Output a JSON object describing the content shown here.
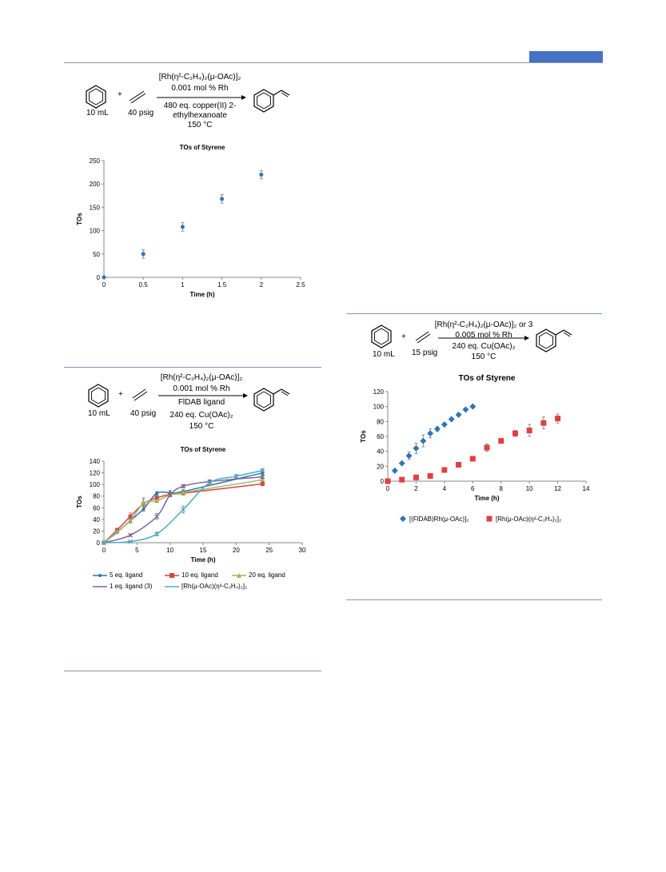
{
  "colors": {
    "rule": "#8496b0",
    "accent": "#4472c4",
    "blue": "#2e75b6",
    "red": "#e04040",
    "green": "#9bbb59",
    "purple": "#8064a2",
    "cyan": "#4bacc6",
    "axis": "#888888",
    "grid": "#d9d9d9"
  },
  "icons": [
    "benzene-icon",
    "ethylene-icon",
    "styrene-icon",
    "reaction-arrow-icon"
  ],
  "scheme1": {
    "plus": "+",
    "benzene_label": "10 mL",
    "ethylene_label": "40 psig",
    "catalyst": "[Rh(η²-C₂H₄)₂(μ-OAc)]₂",
    "loading": "0.001 mol % Rh",
    "oxidant_1": "480 eq. copper(II) 2-",
    "oxidant_2": "ethylhexanoate",
    "temp": "150 °C"
  },
  "scheme2": {
    "plus": "+",
    "benzene_label": "10 mL",
    "ethylene_label": "40 psig",
    "catalyst": "[Rh(η²-C₂H₄)₂(μ-OAc)]₂",
    "loading": "0.001 mol % Rh",
    "ligand": "FlDAB ligand",
    "oxidant": "240 eq. Cu(OAc)₂",
    "temp": "150 °C"
  },
  "scheme3": {
    "plus": "+",
    "benzene_label": "10 mL",
    "ethylene_label": "15 psig",
    "catalyst": "[Rh(η²-C₂H₄)₂(μ-OAc)]₂ or 3",
    "loading": "0.005 mol % Rh",
    "oxidant": "240 eq. Cu(OAc)₂",
    "temp": "150 °C"
  },
  "chart_data": [
    {
      "type": "scatter",
      "title": "TOs of Styrene",
      "xlabel": "Time (h)",
      "ylabel": "TOs",
      "xlim": [
        0,
        2.5
      ],
      "ylim": [
        0,
        250
      ],
      "xticks": [
        "0",
        "0.5",
        "1",
        "1.5",
        "2",
        "2.5"
      ],
      "yticks": [
        "0",
        "50",
        "100",
        "150",
        "200",
        "250"
      ],
      "series": [
        {
          "color": "#2e75b6",
          "x": [
            0,
            0.5,
            1,
            1.5,
            2
          ],
          "y": [
            0,
            50,
            108,
            168,
            220
          ],
          "err": [
            0,
            9,
            9,
            9,
            9
          ]
        }
      ]
    },
    {
      "type": "line",
      "title": "TOs of Styrene",
      "xlabel": "Time (h)",
      "ylabel": "TOs",
      "xlim": [
        0,
        30
      ],
      "ylim": [
        0,
        140
      ],
      "xticks": [
        "0",
        "5",
        "10",
        "15",
        "20",
        "25",
        "30"
      ],
      "yticks": [
        "0",
        "20",
        "40",
        "60",
        "80",
        "100",
        "120",
        "140"
      ],
      "legend_position": "bottom",
      "series": [
        {
          "name": "5 eq. ligand",
          "color": "#2e75b6",
          "x": [
            0,
            2,
            4,
            6,
            8,
            10,
            12,
            24
          ],
          "y": [
            0,
            18,
            38,
            58,
            85,
            86,
            88,
            120
          ],
          "err": [
            0,
            2,
            3,
            4,
            3,
            4,
            3,
            3
          ]
        },
        {
          "name": "10 eq. ligand",
          "color": "#e04040",
          "x": [
            0,
            2,
            4,
            6,
            8,
            10,
            12,
            24
          ],
          "y": [
            0,
            22,
            45,
            67,
            77,
            83,
            85,
            101
          ],
          "err": [
            0,
            2,
            6,
            10,
            4,
            3,
            3,
            3
          ]
        },
        {
          "name": "20 eq. ligand",
          "color": "#9bbb59",
          "x": [
            0,
            2,
            4,
            6,
            8,
            10,
            12,
            24
          ],
          "y": [
            0,
            19,
            38,
            68,
            72,
            82,
            86,
            108
          ],
          "err": [
            0,
            2,
            4,
            6,
            3,
            3,
            3,
            3
          ]
        },
        {
          "name": "1 eq. ligand (3)",
          "color": "#8064a2",
          "x": [
            0,
            4,
            8,
            10,
            12,
            16,
            24
          ],
          "y": [
            0,
            13,
            45,
            82,
            97,
            105,
            113
          ],
          "err": [
            0,
            2,
            5,
            3,
            3,
            3,
            3
          ]
        },
        {
          "name": "[Rh(μ-OAc)(η²-C₂H₄)₂]₂",
          "color": "#4bacc6",
          "x": [
            0,
            4,
            8,
            12,
            16,
            20,
            24
          ],
          "y": [
            0,
            2,
            15,
            57,
            103,
            114,
            124
          ],
          "err": [
            0,
            1,
            3,
            6,
            4,
            3,
            3
          ]
        }
      ]
    },
    {
      "type": "scatter",
      "title": "TOs of Styrene",
      "xlabel": "Time (h)",
      "ylabel": "TOs",
      "xlim": [
        0,
        14
      ],
      "ylim": [
        0,
        120
      ],
      "xticks": [
        "0",
        "2",
        "4",
        "6",
        "8",
        "10",
        "12",
        "14"
      ],
      "yticks": [
        "0",
        "20",
        "40",
        "60",
        "80",
        "100",
        "120"
      ],
      "legend_position": "bottom",
      "series": [
        {
          "name": "[(FlDAB)Rh(μ-OAc)]₂",
          "marker": "diamond",
          "color": "#2e75b6",
          "x": [
            0,
            0.5,
            1,
            1.5,
            2,
            2.5,
            3,
            3.5,
            4,
            4.5,
            5,
            5.5,
            6
          ],
          "y": [
            0,
            14,
            24,
            34,
            44,
            54,
            64,
            70,
            76,
            83,
            89,
            96,
            100
          ],
          "err": [
            0,
            0,
            0,
            5,
            7,
            8,
            6,
            3,
            2,
            2,
            1,
            1,
            1
          ]
        },
        {
          "name": "[Rh(μ-OAc)(η²-C₂H₄)₂]₂",
          "marker": "square",
          "color": "#e04040",
          "x": [
            0,
            1,
            2,
            3,
            4,
            5,
            6,
            7,
            8,
            9,
            10,
            11,
            12
          ],
          "y": [
            0,
            2,
            5,
            7,
            15,
            22,
            30,
            45,
            54,
            64,
            68,
            78,
            84
          ],
          "err": [
            0,
            0,
            0,
            0,
            0,
            0,
            3,
            5,
            2,
            4,
            8,
            8,
            6
          ]
        }
      ]
    }
  ]
}
